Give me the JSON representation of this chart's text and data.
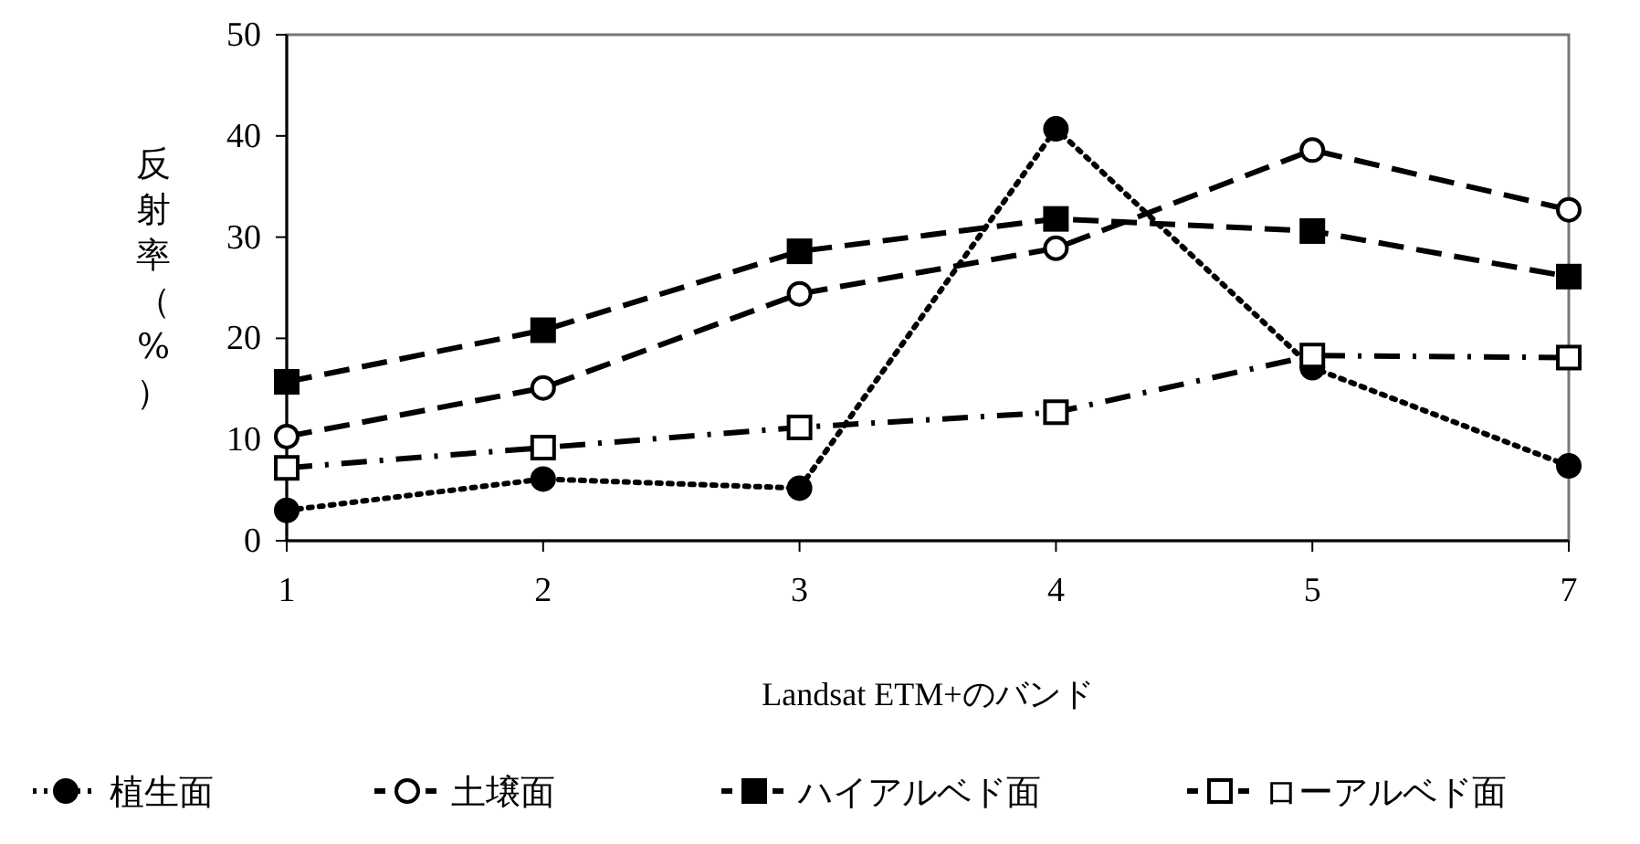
{
  "chart_data": {
    "type": "line",
    "xlabel": "Landsat ETM+のバンド",
    "ylabel": "反射率（%）",
    "categories": [
      "1",
      "2",
      "3",
      "4",
      "5",
      "7"
    ],
    "ylim": [
      0,
      50
    ],
    "yticks": [
      0,
      10,
      20,
      30,
      40,
      50
    ],
    "grid": false,
    "legend": "bottom",
    "series": [
      {
        "name": "植生面",
        "color": "#000000",
        "marker": "circle",
        "line_style": "dotted",
        "values": [
          3.0,
          6.1,
          5.2,
          40.7,
          17.1,
          7.4
        ]
      },
      {
        "name": "土壌面",
        "color": "#000000",
        "marker": "circle_open",
        "line_style": "dashed",
        "values": [
          10.3,
          15.1,
          24.4,
          28.9,
          38.6,
          32.7
        ]
      },
      {
        "name": "ハイアルベド面",
        "color": "#000000",
        "marker": "square",
        "line_style": "dashed",
        "values": [
          15.7,
          20.8,
          28.6,
          31.8,
          30.6,
          26.1
        ]
      },
      {
        "name": "ローアルベド面",
        "color": "#000000",
        "marker": "square_open",
        "line_style": "dashdot",
        "values": [
          7.2,
          9.2,
          11.2,
          12.7,
          18.3,
          18.1
        ]
      }
    ]
  }
}
